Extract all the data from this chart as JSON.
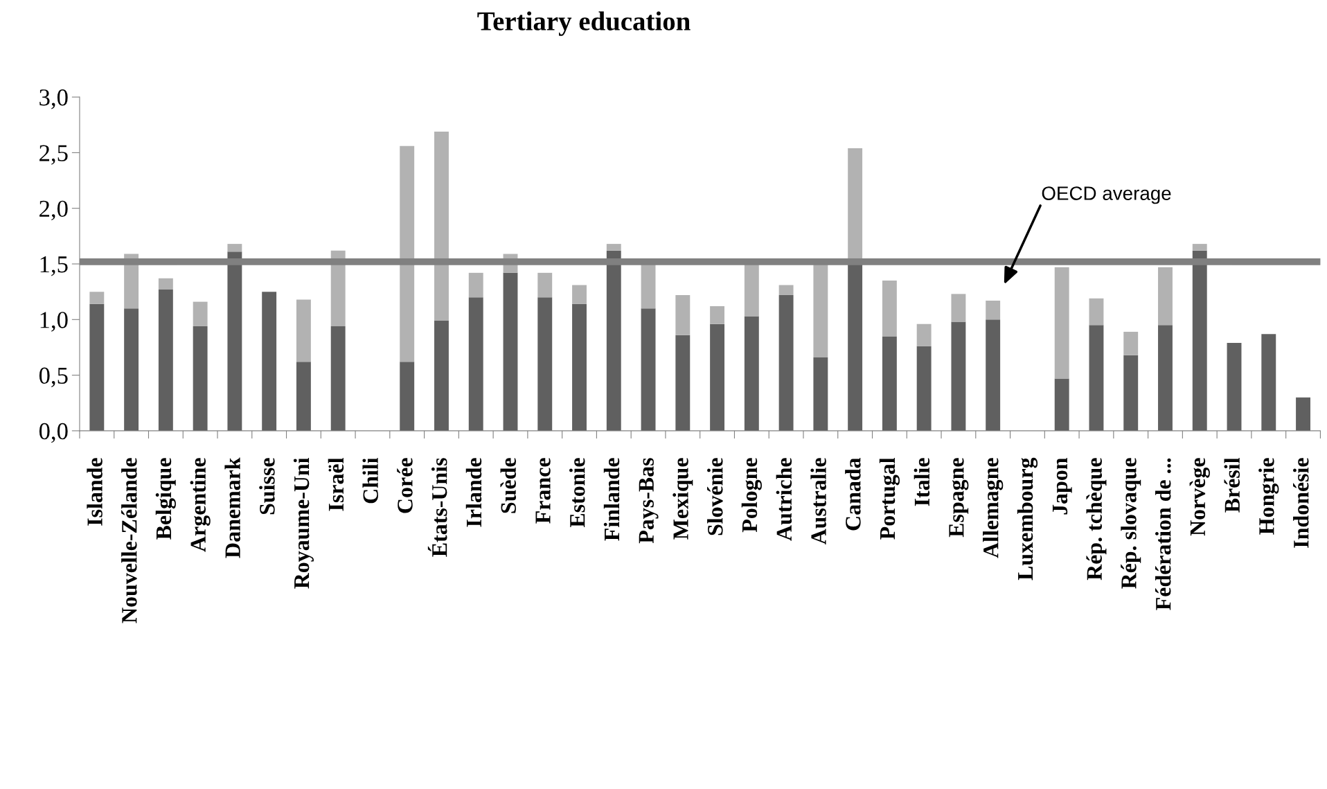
{
  "chart_data": {
    "type": "bar",
    "title": "Tertiary education",
    "stacked": true,
    "categories": [
      "Islande",
      "Nouvelle-Zélande",
      "Belgique",
      "Argentine",
      "Danemark",
      "Suisse",
      "Royaume-Uni",
      "Israël",
      "Chili",
      "Corée",
      "États-Unis",
      "Irlande",
      "Suède",
      "France",
      "Estonie",
      "Finlande",
      "Pays-Bas",
      "Mexique",
      "Slovénie",
      "Pologne",
      "Autriche",
      "Australie",
      "Canada",
      "Portugal",
      "Italie",
      "Espagne",
      "Allemagne",
      "Luxembourg",
      "Japon",
      "Rép. tchèque",
      "Rép. slovaque",
      "Fédération de ...",
      "Norvège",
      "Brésil",
      "Hongrie",
      "Indonésie"
    ],
    "series": [
      {
        "color": "#606060",
        "values": [
          1.14,
          1.1,
          1.27,
          0.94,
          1.61,
          1.25,
          0.62,
          0.94,
          null,
          0.62,
          0.99,
          1.2,
          1.42,
          1.2,
          1.14,
          1.62,
          1.1,
          0.86,
          0.96,
          1.03,
          1.22,
          0.66,
          1.51,
          0.85,
          0.76,
          0.98,
          1.0,
          null,
          0.47,
          0.95,
          0.68,
          0.95,
          1.62,
          0.79,
          0.87,
          0.3
        ]
      },
      {
        "color": "#b2b2b2",
        "values": [
          0.11,
          0.49,
          0.1,
          0.22,
          0.07,
          null,
          0.56,
          0.68,
          null,
          1.94,
          1.7,
          0.22,
          0.17,
          0.22,
          0.17,
          0.06,
          0.4,
          0.36,
          0.16,
          0.47,
          0.09,
          0.84,
          1.03,
          0.5,
          0.2,
          0.25,
          0.17,
          null,
          1.0,
          0.24,
          0.21,
          0.52,
          0.06,
          null,
          null,
          null
        ]
      }
    ],
    "ylim": [
      0,
      3
    ],
    "yticks": [
      {
        "value": 0,
        "label": "0,0"
      },
      {
        "value": 0.5,
        "label": "0,5"
      },
      {
        "value": 1,
        "label": "1,0"
      },
      {
        "value": 1.5,
        "label": "1,5"
      },
      {
        "value": 2,
        "label": "2,0"
      },
      {
        "value": 2.5,
        "label": "2,5"
      },
      {
        "value": 3,
        "label": "3,0"
      }
    ],
    "grid": false,
    "legend": false,
    "annotations": [
      "OECD average"
    ],
    "ref_lines": [
      {
        "axis": "y",
        "value": 1.52,
        "color": "#808080"
      }
    ]
  }
}
